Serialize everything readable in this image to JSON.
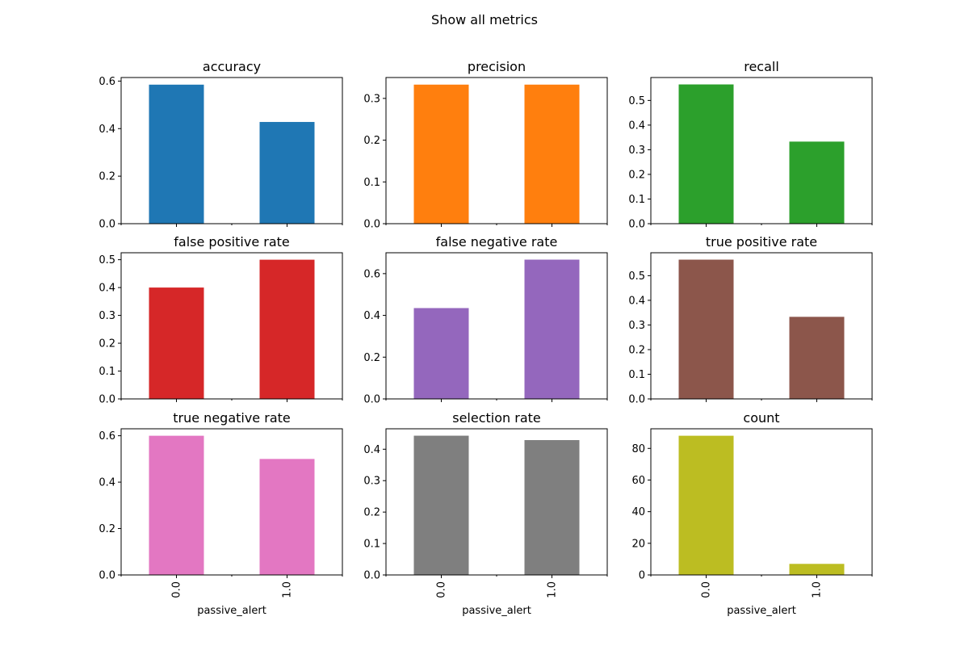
{
  "figure": {
    "title": "Show all metrics"
  },
  "chart_data": [
    {
      "type": "bar",
      "title": "accuracy",
      "categories": [
        "0.0",
        "1.0"
      ],
      "values": [
        0.585,
        0.428
      ],
      "ylim": [
        0,
        0.615
      ],
      "yticks": [
        0.0,
        0.2,
        0.4,
        0.6
      ],
      "ytick_labels": [
        "0.0",
        "0.2",
        "0.4",
        "0.6"
      ],
      "xlabel": "",
      "color": "#1f77b4",
      "show_xticklabels": false
    },
    {
      "type": "bar",
      "title": "precision",
      "categories": [
        "0.0",
        "1.0"
      ],
      "values": [
        0.333,
        0.333
      ],
      "ylim": [
        0,
        0.35
      ],
      "yticks": [
        0.0,
        0.1,
        0.2,
        0.3
      ],
      "ytick_labels": [
        "0.0",
        "0.1",
        "0.2",
        "0.3"
      ],
      "xlabel": "",
      "color": "#ff7f0e",
      "show_xticklabels": false
    },
    {
      "type": "bar",
      "title": "recall",
      "categories": [
        "0.0",
        "1.0"
      ],
      "values": [
        0.565,
        0.333
      ],
      "ylim": [
        0,
        0.593
      ],
      "yticks": [
        0.0,
        0.1,
        0.2,
        0.3,
        0.4,
        0.5
      ],
      "ytick_labels": [
        "0.0",
        "0.1",
        "0.2",
        "0.3",
        "0.4",
        "0.5"
      ],
      "xlabel": "",
      "color": "#2ca02c",
      "show_xticklabels": false
    },
    {
      "type": "bar",
      "title": "false positive rate",
      "categories": [
        "0.0",
        "1.0"
      ],
      "values": [
        0.4,
        0.5
      ],
      "ylim": [
        0,
        0.525
      ],
      "yticks": [
        0.0,
        0.1,
        0.2,
        0.3,
        0.4,
        0.5
      ],
      "ytick_labels": [
        "0.0",
        "0.1",
        "0.2",
        "0.3",
        "0.4",
        "0.5"
      ],
      "xlabel": "",
      "color": "#d62728",
      "show_xticklabels": false
    },
    {
      "type": "bar",
      "title": "false negative rate",
      "categories": [
        "0.0",
        "1.0"
      ],
      "values": [
        0.435,
        0.667
      ],
      "ylim": [
        0,
        0.7
      ],
      "yticks": [
        0.0,
        0.2,
        0.4,
        0.6
      ],
      "ytick_labels": [
        "0.0",
        "0.2",
        "0.4",
        "0.6"
      ],
      "xlabel": "",
      "color": "#9467bd",
      "show_xticklabels": false
    },
    {
      "type": "bar",
      "title": "true positive rate",
      "categories": [
        "0.0",
        "1.0"
      ],
      "values": [
        0.565,
        0.333
      ],
      "ylim": [
        0,
        0.593
      ],
      "yticks": [
        0.0,
        0.1,
        0.2,
        0.3,
        0.4,
        0.5
      ],
      "ytick_labels": [
        "0.0",
        "0.1",
        "0.2",
        "0.3",
        "0.4",
        "0.5"
      ],
      "xlabel": "",
      "color": "#8c564b",
      "show_xticklabels": false
    },
    {
      "type": "bar",
      "title": "true negative rate",
      "categories": [
        "0.0",
        "1.0"
      ],
      "values": [
        0.6,
        0.5
      ],
      "ylim": [
        0,
        0.63
      ],
      "yticks": [
        0.0,
        0.2,
        0.4,
        0.6
      ],
      "ytick_labels": [
        "0.0",
        "0.2",
        "0.4",
        "0.6"
      ],
      "xlabel": "passive_alert",
      "color": "#e377c2",
      "show_xticklabels": true
    },
    {
      "type": "bar",
      "title": "selection rate",
      "categories": [
        "0.0",
        "1.0"
      ],
      "values": [
        0.443,
        0.429
      ],
      "ylim": [
        0,
        0.465
      ],
      "yticks": [
        0.0,
        0.1,
        0.2,
        0.3,
        0.4
      ],
      "ytick_labels": [
        "0.0",
        "0.1",
        "0.2",
        "0.3",
        "0.4"
      ],
      "xlabel": "passive_alert",
      "color": "#7f7f7f",
      "show_xticklabels": true
    },
    {
      "type": "bar",
      "title": "count",
      "categories": [
        "0.0",
        "1.0"
      ],
      "values": [
        88,
        7
      ],
      "ylim": [
        0,
        92.4
      ],
      "yticks": [
        0,
        20,
        40,
        60,
        80
      ],
      "ytick_labels": [
        "0",
        "20",
        "40",
        "60",
        "80"
      ],
      "xlabel": "passive_alert",
      "color": "#bcbd22",
      "show_xticklabels": true
    }
  ]
}
